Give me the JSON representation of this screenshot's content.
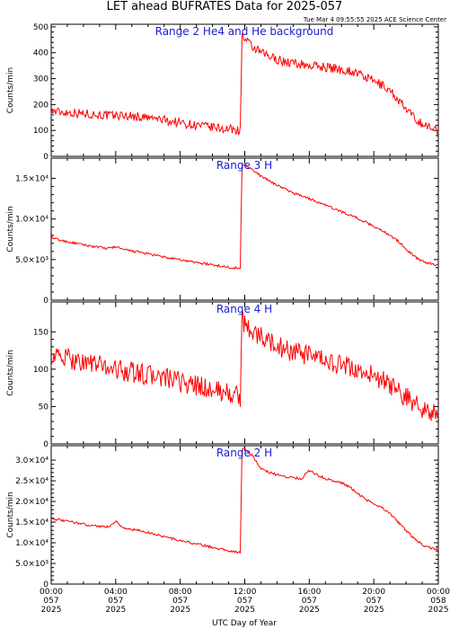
{
  "title": "LET ahead BUFRATES Data for 2025-057",
  "timestamp": "Tue Mar  4 09:55:55 2025 ACE Science Center",
  "x_axis_label": "UTC Day of Year",
  "chart_data": [
    {
      "type": "line",
      "panel_label": "Range 2 He4 and He background",
      "ylabel": "Counts/min",
      "ylim": [
        0,
        510
      ],
      "y_ticks": [
        {
          "v": 0,
          "label": "0"
        },
        {
          "v": 100,
          "label": "100"
        },
        {
          "v": 200,
          "label": "200"
        },
        {
          "v": 300,
          "label": "300"
        },
        {
          "v": 400,
          "label": "400"
        },
        {
          "v": 500,
          "label": "500"
        }
      ],
      "x_hours": [
        0,
        0.5,
        1,
        1.5,
        2,
        2.5,
        3,
        3.5,
        4,
        4.5,
        5,
        5.5,
        6,
        6.5,
        7,
        7.5,
        8,
        8.5,
        9,
        9.5,
        10,
        10.5,
        11,
        11.5,
        11.75,
        11.8,
        12,
        12.5,
        13,
        13.5,
        14,
        14.5,
        15,
        15.5,
        16,
        16.5,
        17,
        17.5,
        18,
        18.5,
        19,
        19.5,
        20,
        20.5,
        21,
        21.5,
        22,
        22.5,
        23,
        23.5,
        24
      ],
      "values": [
        175,
        172,
        170,
        168,
        165,
        163,
        160,
        158,
        157,
        158,
        155,
        152,
        148,
        145,
        140,
        135,
        130,
        125,
        120,
        115,
        112,
        108,
        105,
        102,
        100,
        470,
        450,
        420,
        400,
        385,
        375,
        365,
        360,
        355,
        350,
        348,
        345,
        340,
        335,
        330,
        320,
        305,
        290,
        275,
        255,
        220,
        180,
        150,
        125,
        110,
        100
      ],
      "noise": 18
    },
    {
      "type": "line",
      "panel_label": "Range 3 H",
      "ylabel": "Counts/min",
      "ylim": [
        0,
        17500
      ],
      "y_ticks": [
        {
          "v": 0,
          "label": "0"
        },
        {
          "v": 5000,
          "label": "5.0×10³"
        },
        {
          "v": 10000,
          "label": "1.0×10⁴"
        },
        {
          "v": 15000,
          "label": "1.5×10⁴"
        }
      ],
      "x_hours": [
        0,
        0.5,
        1,
        1.5,
        2,
        2.5,
        3,
        3.5,
        4,
        4.5,
        5,
        5.5,
        6,
        6.5,
        7,
        7.5,
        8,
        8.5,
        9,
        9.5,
        10,
        10.5,
        11,
        11.5,
        11.75,
        11.8,
        12,
        12.5,
        13,
        13.5,
        14,
        14.5,
        15,
        15.5,
        16,
        16.5,
        17,
        17.5,
        18,
        18.5,
        19,
        19.5,
        20,
        20.5,
        21,
        21.5,
        22,
        22.5,
        23,
        23.5,
        24
      ],
      "values": [
        7700,
        7400,
        7200,
        7000,
        6800,
        6650,
        6500,
        6350,
        6600,
        6200,
        6050,
        5900,
        5700,
        5500,
        5300,
        5100,
        4950,
        4800,
        4650,
        4500,
        4350,
        4200,
        4050,
        3950,
        3900,
        16500,
        16800,
        16000,
        15300,
        14700,
        14200,
        13700,
        13200,
        12900,
        12500,
        12100,
        11700,
        11300,
        10900,
        10500,
        10100,
        9600,
        9100,
        8600,
        8000,
        7300,
        6300,
        5400,
        4800,
        4500,
        4300
      ],
      "noise": 150
    },
    {
      "type": "line",
      "panel_label": "Range 4 H",
      "ylabel": "Counts/min",
      "ylim": [
        0,
        190
      ],
      "y_ticks": [
        {
          "v": 0,
          "label": "0"
        },
        {
          "v": 50,
          "label": "50"
        },
        {
          "v": 100,
          "label": "100"
        },
        {
          "v": 150,
          "label": "150"
        }
      ],
      "x_hours": [
        0,
        0.5,
        1,
        1.5,
        2,
        2.5,
        3,
        3.5,
        4,
        4.5,
        5,
        5.5,
        6,
        6.5,
        7,
        7.5,
        8,
        8.5,
        9,
        9.5,
        10,
        10.5,
        11,
        11.5,
        11.75,
        11.8,
        12,
        12.5,
        13,
        13.5,
        14,
        14.5,
        15,
        15.5,
        16,
        16.5,
        17,
        17.5,
        18,
        18.5,
        19,
        19.5,
        20,
        20.5,
        21,
        21.5,
        22,
        22.5,
        23,
        23.5,
        24
      ],
      "values": [
        118,
        116,
        114,
        112,
        110,
        108,
        105,
        103,
        100,
        98,
        96,
        94,
        92,
        90,
        88,
        85,
        83,
        80,
        78,
        75,
        72,
        70,
        68,
        65,
        62,
        165,
        160,
        150,
        143,
        137,
        132,
        127,
        123,
        120,
        117,
        114,
        111,
        108,
        105,
        102,
        99,
        95,
        90,
        85,
        78,
        70,
        62,
        55,
        48,
        42,
        38
      ],
      "noise": 14
    },
    {
      "type": "line",
      "panel_label": "Range 2 H",
      "ylabel": "Counts/min",
      "ylim": [
        0,
        33500
      ],
      "y_ticks": [
        {
          "v": 0,
          "label": "0"
        },
        {
          "v": 5000,
          "label": "5.0×10³"
        },
        {
          "v": 10000,
          "label": "1.0×10⁴"
        },
        {
          "v": 15000,
          "label": "1.5×10⁴"
        },
        {
          "v": 20000,
          "label": "2.0×10⁴"
        },
        {
          "v": 25000,
          "label": "2.5×10⁴"
        },
        {
          "v": 30000,
          "label": "3.0×10⁴"
        }
      ],
      "x_hours": [
        0,
        0.5,
        1,
        1.5,
        2,
        2.5,
        3,
        3.5,
        4,
        4.5,
        5,
        5.5,
        6,
        6.5,
        7,
        7.5,
        8,
        8.5,
        9,
        9.5,
        10,
        10.5,
        11,
        11.5,
        11.75,
        11.8,
        12,
        12.5,
        13,
        13.5,
        14,
        14.5,
        15,
        15.5,
        16,
        16.5,
        17,
        17.5,
        18,
        18.5,
        19,
        19.5,
        20,
        20.5,
        21,
        21.5,
        22,
        22.5,
        23,
        23.5,
        24
      ],
      "values": [
        16000,
        15500,
        15200,
        14900,
        14500,
        14200,
        14000,
        13800,
        15200,
        13500,
        13200,
        12900,
        12500,
        12000,
        11500,
        11000,
        10500,
        10100,
        9700,
        9300,
        8900,
        8500,
        8100,
        7800,
        7500,
        32500,
        32800,
        31000,
        28000,
        27000,
        26500,
        26000,
        25800,
        25500,
        27500,
        26500,
        25500,
        25000,
        24500,
        23500,
        22000,
        20500,
        19500,
        18500,
        17000,
        15000,
        13000,
        11000,
        9500,
        8800,
        8300
      ],
      "noise": 300
    }
  ],
  "x_ticks": [
    {
      "h": 0,
      "time": "00:00",
      "doy": "057",
      "year": "2025"
    },
    {
      "h": 4,
      "time": "04:00",
      "doy": "057",
      "year": "2025"
    },
    {
      "h": 8,
      "time": "08:00",
      "doy": "057",
      "year": "2025"
    },
    {
      "h": 12,
      "time": "12:00",
      "doy": "057",
      "year": "2025"
    },
    {
      "h": 16,
      "time": "16:00",
      "doy": "057",
      "year": "2025"
    },
    {
      "h": 20,
      "time": "20:00",
      "doy": "057",
      "year": "2025"
    },
    {
      "h": 24,
      "time": "00:00",
      "doy": "058",
      "year": "2025"
    }
  ]
}
